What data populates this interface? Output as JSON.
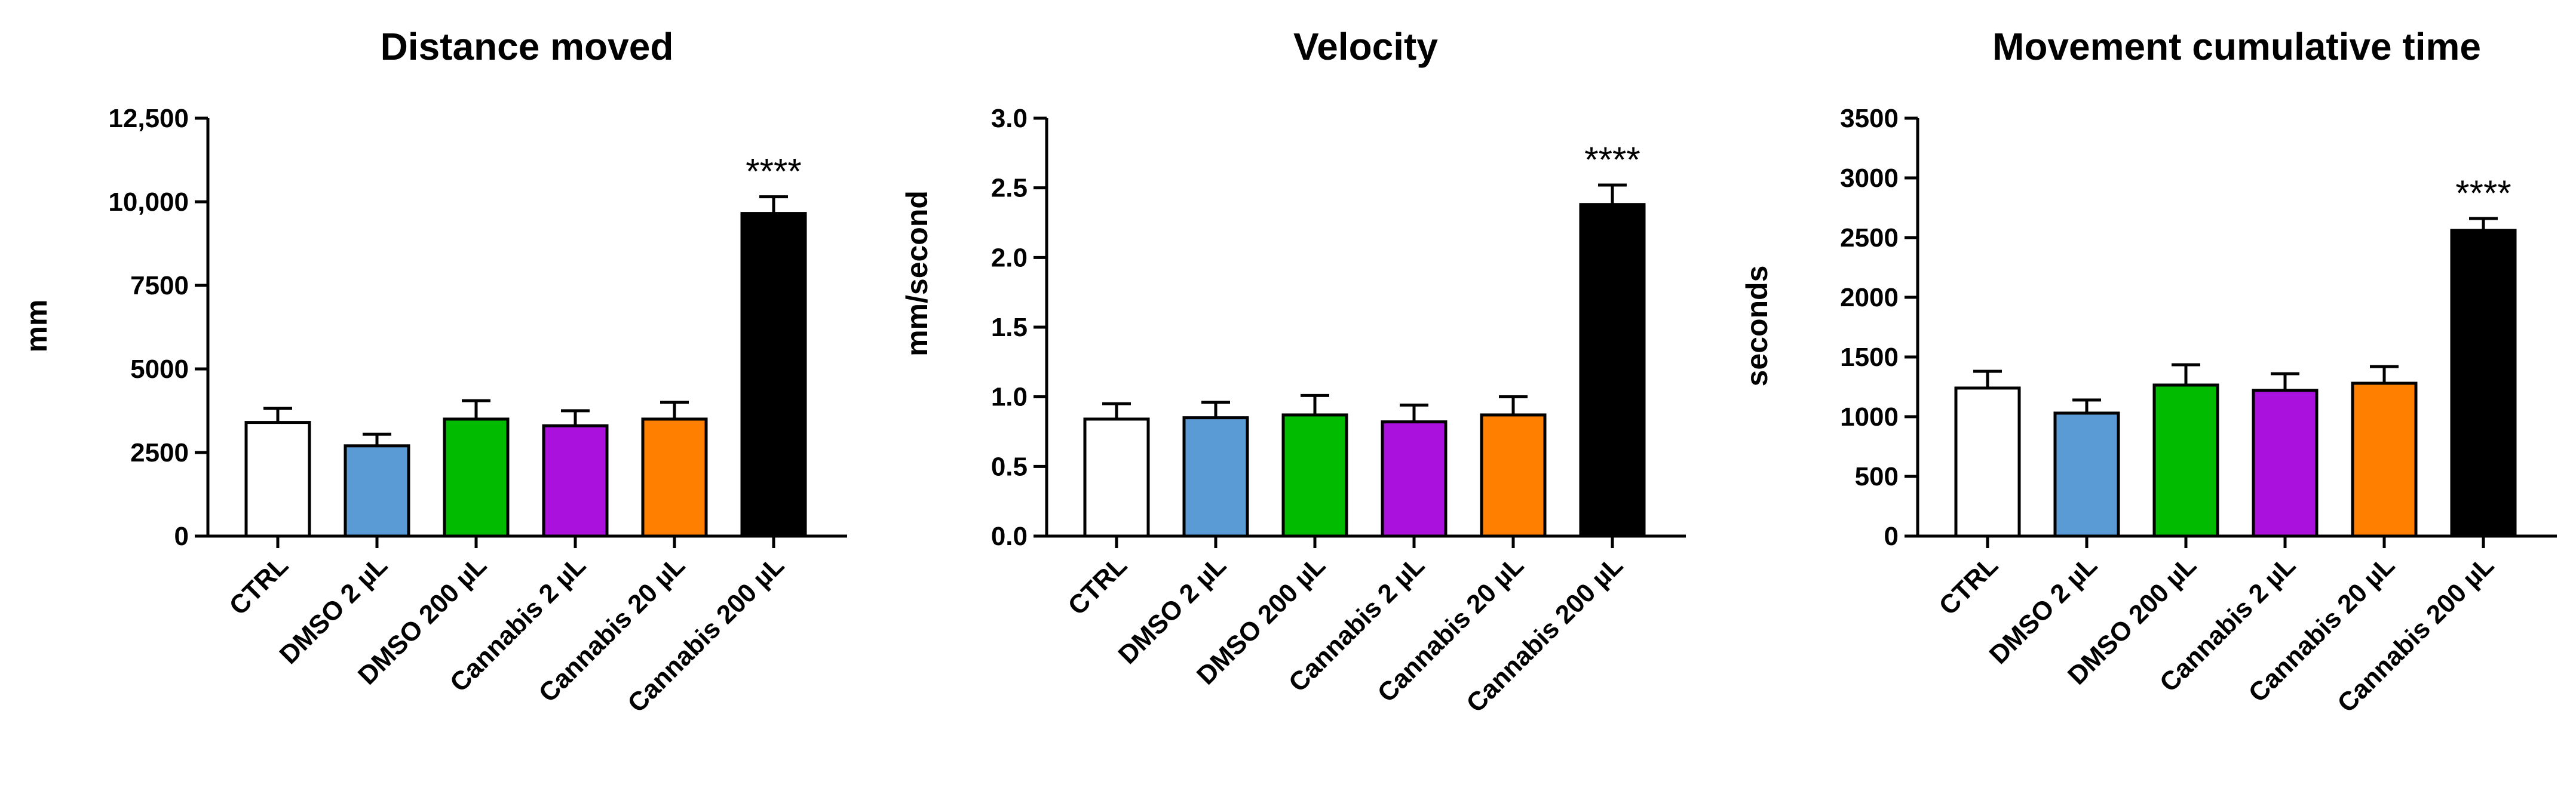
{
  "figure": {
    "categories": [
      "CTRL",
      "DMSO 2 µL",
      "DMSO 200 µL",
      "Cannabis 2 µL",
      "Cannabis 20 µL",
      "Cannabis 200 µL"
    ],
    "bar_colors": [
      "#ffffff",
      "#5b9bd5",
      "#00bb00",
      "#aa11dd",
      "#ff8000",
      "#000000"
    ]
  },
  "chart_data": [
    {
      "type": "bar",
      "title": "Distance moved",
      "xlabel": "",
      "ylabel": "mm",
      "ylim": [
        0,
        12500
      ],
      "yticks": [
        0,
        2500,
        5000,
        7500,
        10000,
        12500
      ],
      "ytick_labels": [
        "0",
        "2500",
        "5000",
        "7500",
        "10,000",
        "12,500"
      ],
      "categories": [
        "CTRL",
        "DMSO 2 µL",
        "DMSO 200 µL",
        "Cannabis 2 µL",
        "Cannabis 20 µL",
        "Cannabis 200 µL"
      ],
      "values": [
        3400,
        2700,
        3500,
        3300,
        3500,
        9650
      ],
      "errors": [
        420,
        350,
        550,
        450,
        500,
        500
      ],
      "annotations": [
        {
          "category": "Cannabis 200 µL",
          "text": "****"
        }
      ]
    },
    {
      "type": "bar",
      "title": "Velocity",
      "xlabel": "",
      "ylabel": "mm/second",
      "ylim": [
        0,
        3.0
      ],
      "yticks": [
        0,
        0.5,
        1.0,
        1.5,
        2.0,
        2.5,
        3.0
      ],
      "ytick_labels": [
        "0.0",
        "0.5",
        "1.0",
        "1.5",
        "2.0",
        "2.5",
        "3.0"
      ],
      "categories": [
        "CTRL",
        "DMSO 2 µL",
        "DMSO 200 µL",
        "Cannabis 2 µL",
        "Cannabis 20 µL",
        "Cannabis 200 µL"
      ],
      "values": [
        0.84,
        0.85,
        0.87,
        0.82,
        0.87,
        2.38
      ],
      "errors": [
        0.11,
        0.11,
        0.14,
        0.12,
        0.13,
        0.14
      ],
      "annotations": [
        {
          "category": "Cannabis 200 µL",
          "text": "****"
        }
      ]
    },
    {
      "type": "bar",
      "title": "Movement cumulative time",
      "xlabel": "",
      "ylabel": "seconds",
      "ylim": [
        0,
        3500
      ],
      "yticks": [
        0,
        500,
        1000,
        1500,
        2000,
        2500,
        3000,
        3500
      ],
      "ytick_labels": [
        "0",
        "500",
        "1000",
        "1500",
        "2000",
        "2500",
        "3000",
        "3500"
      ],
      "categories": [
        "CTRL",
        "DMSO 2 µL",
        "DMSO 200 µL",
        "Cannabis 2 µL",
        "Cannabis 20 µL",
        "Cannabis 200 µL"
      ],
      "values": [
        1240,
        1030,
        1265,
        1220,
        1280,
        2560
      ],
      "errors": [
        140,
        110,
        170,
        140,
        140,
        100
      ],
      "annotations": [
        {
          "category": "Cannabis 200 µL",
          "text": "****"
        }
      ]
    }
  ]
}
